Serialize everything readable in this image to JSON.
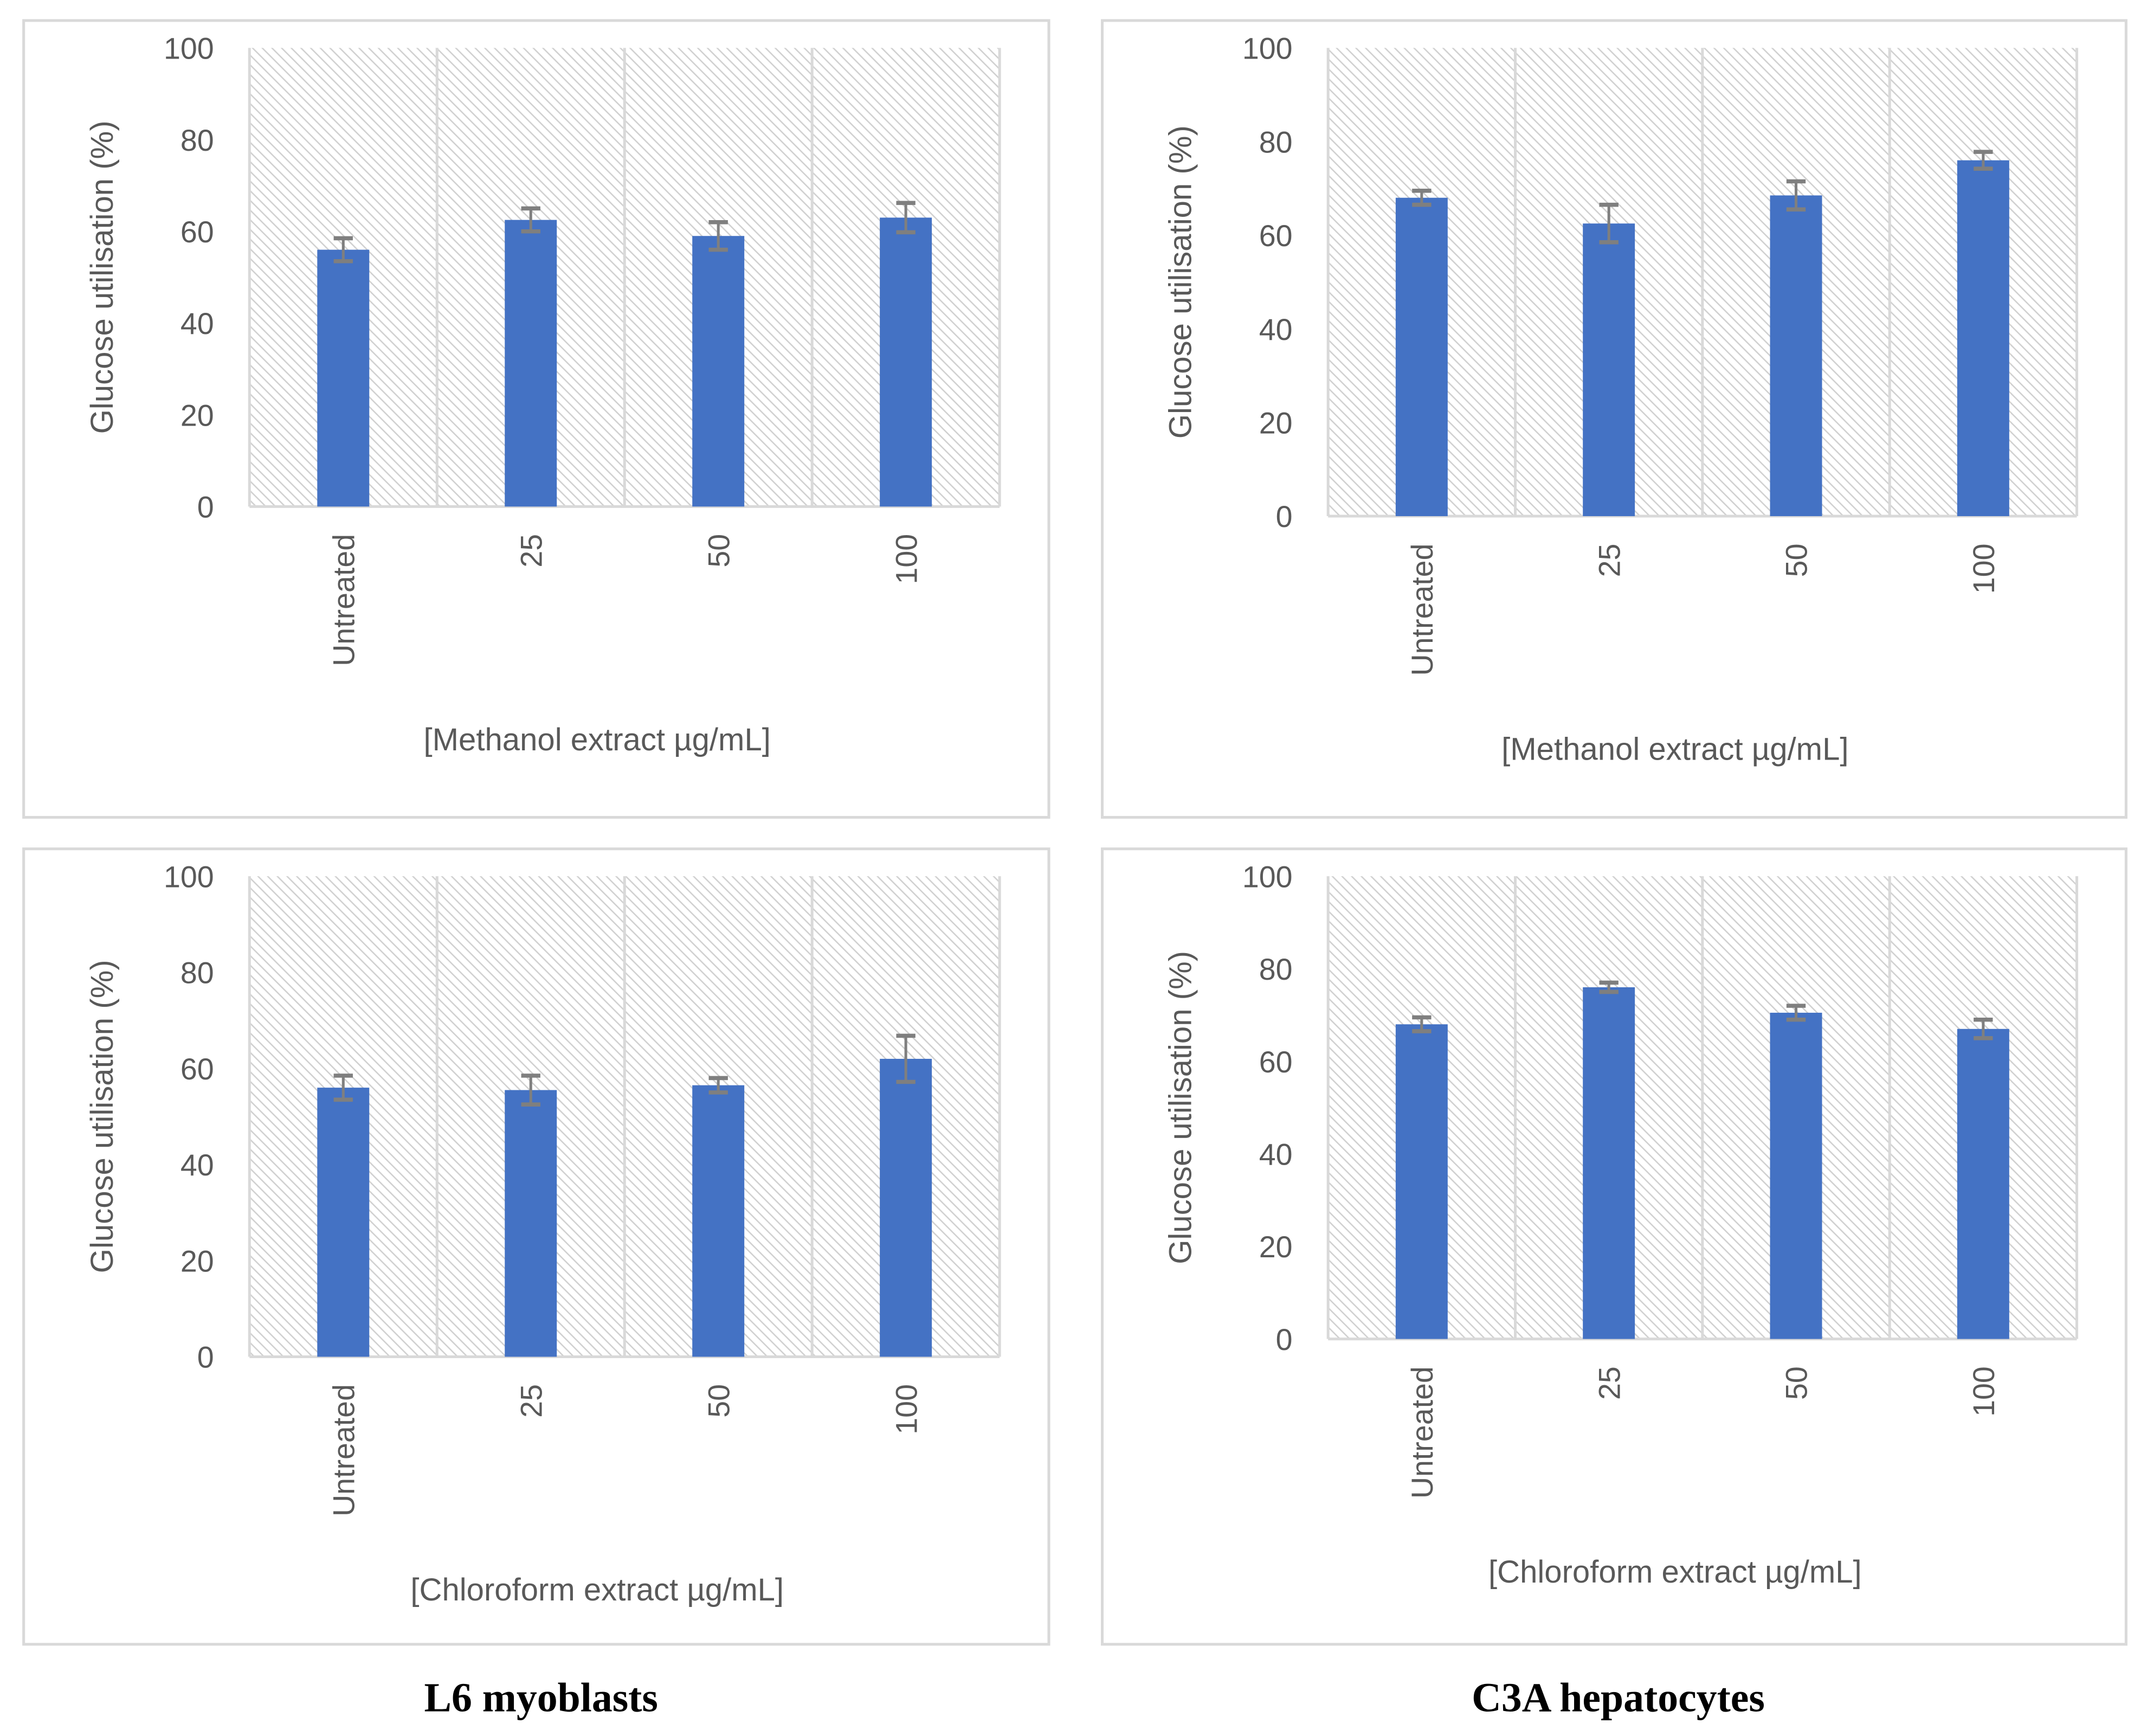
{
  "colors": {
    "bar": "#4472C4",
    "error_bar": "#7F7F7F",
    "grid": "#D9D9D9",
    "text": "#595959"
  },
  "footer": {
    "left": "L6 myoblasts",
    "right": "C3A hepatocytes"
  },
  "chart_data": [
    {
      "type": "bar",
      "panel": "L6 myoblasts - methanol",
      "categories": [
        "Untreated",
        "25",
        "50",
        "100"
      ],
      "values": [
        56,
        62.5,
        59,
        63
      ],
      "errors": [
        2.5,
        2.5,
        3,
        3.2
      ],
      "xlabel": "[Methanol extract µg/mL]",
      "ylabel": "Glucose utilisation (%)",
      "ylim": [
        0,
        100
      ],
      "yticks": [
        "0",
        "20",
        "40",
        "60",
        "80",
        "100"
      ]
    },
    {
      "type": "bar",
      "panel": "C3A hepatocytes - methanol",
      "categories": [
        "Untreated",
        "25",
        "50",
        "100"
      ],
      "values": [
        68,
        62.5,
        68.5,
        76
      ],
      "errors": [
        1.5,
        4,
        3,
        1.8
      ],
      "xlabel": "[Methanol extract µg/mL]",
      "ylabel": "Glucose utilisation (%)",
      "ylim": [
        0,
        100
      ],
      "yticks": [
        "0",
        "20",
        "40",
        "60",
        "80",
        "100"
      ]
    },
    {
      "type": "bar",
      "panel": "L6 myoblasts - chloroform",
      "categories": [
        "Untreated",
        "25",
        "50",
        "100"
      ],
      "values": [
        56,
        55.5,
        56.5,
        62
      ],
      "errors": [
        2.5,
        3,
        1.5,
        4.8
      ],
      "xlabel": "[Chloroform extract µg/mL]",
      "ylabel": "Glucose utilisation (%)",
      "ylim": [
        0,
        100
      ],
      "yticks": [
        "0",
        "20",
        "40",
        "60",
        "80",
        "100"
      ]
    },
    {
      "type": "bar",
      "panel": "C3A hepatocytes - chloroform",
      "categories": [
        "Untreated",
        "25",
        "50",
        "100"
      ],
      "values": [
        68,
        76,
        70.5,
        67
      ],
      "errors": [
        1.5,
        1,
        1.5,
        2
      ],
      "xlabel": "[Chloroform extract µg/mL]",
      "ylabel": "Glucose utilisation (%)",
      "ylim": [
        0,
        100
      ],
      "yticks": [
        "0",
        "20",
        "40",
        "60",
        "80",
        "100"
      ]
    }
  ]
}
